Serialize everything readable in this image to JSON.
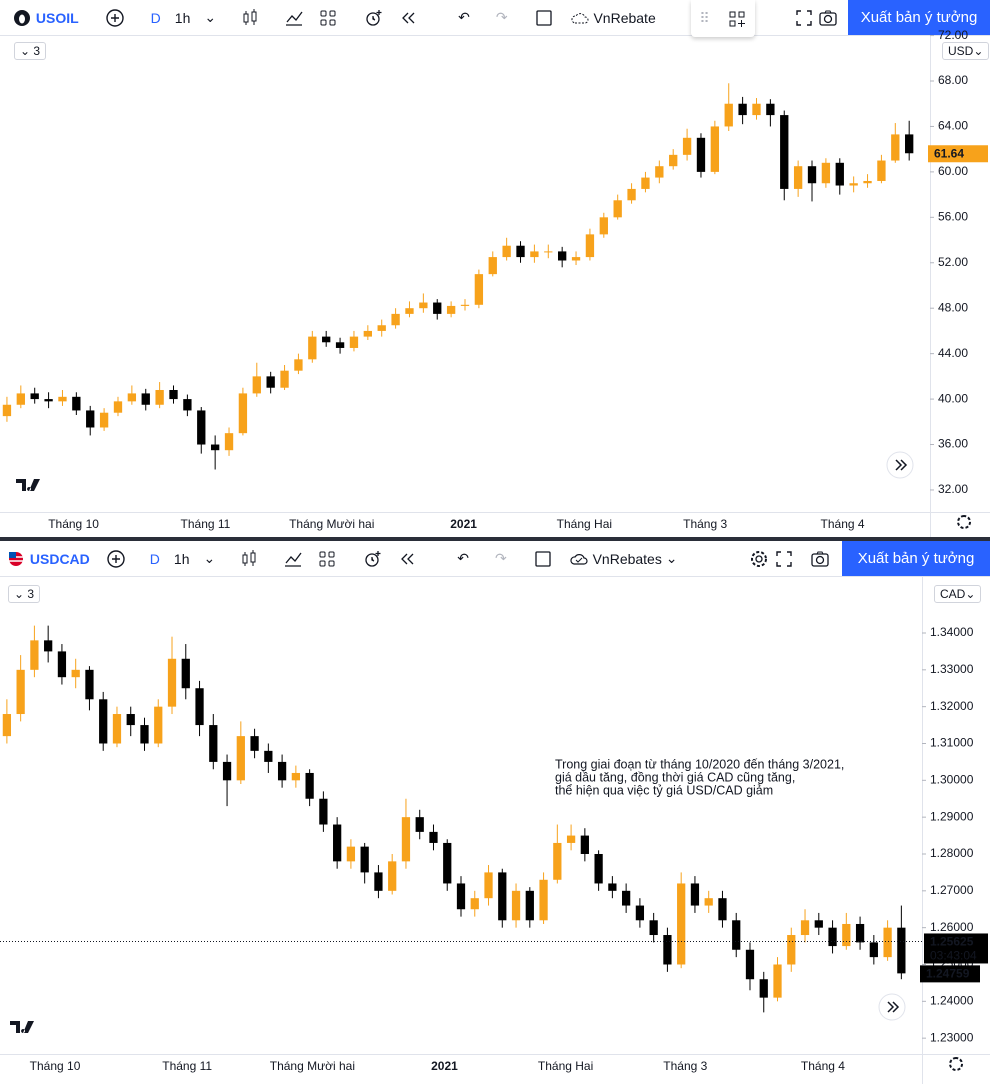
{
  "panels": [
    {
      "toolbar": {
        "symbol": "USOIL",
        "period": "D",
        "interval": "1h",
        "template": "VnRebate",
        "publish": "Xuất bản ý tưởng"
      },
      "scale_unit": "USD",
      "indicator_count": "3"
    },
    {
      "toolbar": {
        "symbol": "USDCAD",
        "period": "D",
        "interval": "1h",
        "template": "VnRebates",
        "publish": "Xuất bản ý tưởng"
      },
      "scale_unit": "CAD",
      "indicator_count": "3"
    }
  ],
  "chart_data": [
    {
      "type": "candlestick",
      "up_color": "#f7a21b",
      "down_color": "#000000",
      "xlim": [
        -0.5,
        66.5
      ],
      "xticks": [
        {
          "value": 4.8,
          "label": "Tháng 10"
        },
        {
          "value": 14.3,
          "label": "Tháng 11"
        },
        {
          "value": 23.4,
          "label": "Tháng Mười hai"
        },
        {
          "value": 32.9,
          "label": "2021"
        },
        {
          "value": 41.6,
          "label": "Tháng Hai"
        },
        {
          "value": 50.3,
          "label": "Tháng 3"
        },
        {
          "value": 60.2,
          "label": "Tháng 4"
        }
      ],
      "ylim": [
        30.06,
        72.05
      ],
      "yticks": [
        {
          "value": 32,
          "label": "32.00"
        },
        {
          "value": 36,
          "label": "36.00"
        },
        {
          "value": 40,
          "label": "40.00"
        },
        {
          "value": 44,
          "label": "44.00"
        },
        {
          "value": 48,
          "label": "48.00"
        },
        {
          "value": 52,
          "label": "52.00"
        },
        {
          "value": 56,
          "label": "56.00"
        },
        {
          "value": 60,
          "label": "60.00"
        },
        {
          "value": 64,
          "label": "64.00"
        },
        {
          "value": 68,
          "label": "68.00"
        },
        {
          "value": 72,
          "label": "72.00"
        }
      ],
      "last_price": 61.64,
      "last_price_color": "#f7a21b",
      "candles": [
        [
          38.5,
          40.2,
          38.0,
          39.5
        ],
        [
          39.5,
          41.2,
          39.2,
          40.5
        ],
        [
          40.5,
          41.0,
          39.6,
          40.0
        ],
        [
          40.0,
          40.6,
          39.2,
          39.8
        ],
        [
          39.8,
          40.8,
          39.4,
          40.2
        ],
        [
          40.2,
          40.6,
          38.6,
          39.0
        ],
        [
          39.0,
          39.4,
          36.8,
          37.5
        ],
        [
          37.5,
          39.2,
          37.2,
          38.8
        ],
        [
          38.8,
          40.2,
          38.5,
          39.8
        ],
        [
          39.8,
          41.2,
          39.5,
          40.5
        ],
        [
          40.5,
          40.9,
          39.0,
          39.5
        ],
        [
          39.5,
          41.5,
          39.2,
          40.8
        ],
        [
          40.8,
          41.2,
          39.6,
          40.0
        ],
        [
          40.0,
          40.4,
          38.5,
          39.0
        ],
        [
          39.0,
          39.3,
          35.2,
          36.0
        ],
        [
          36.0,
          36.8,
          33.8,
          35.5
        ],
        [
          35.5,
          37.5,
          35.0,
          37.0
        ],
        [
          37.0,
          41.0,
          36.8,
          40.5
        ],
        [
          40.5,
          43.2,
          40.2,
          42.0
        ],
        [
          42.0,
          42.4,
          40.5,
          41.0
        ],
        [
          41.0,
          43.0,
          40.8,
          42.5
        ],
        [
          42.5,
          44.0,
          42.2,
          43.5
        ],
        [
          43.5,
          46.0,
          43.2,
          45.5
        ],
        [
          45.5,
          46.0,
          44.6,
          45.0
        ],
        [
          45.0,
          45.4,
          44.0,
          44.5
        ],
        [
          44.5,
          46.0,
          44.2,
          45.5
        ],
        [
          45.5,
          46.5,
          45.2,
          46.0
        ],
        [
          46.0,
          47.0,
          45.5,
          46.5
        ],
        [
          46.5,
          48.0,
          46.2,
          47.5
        ],
        [
          47.5,
          48.6,
          47.2,
          48.0
        ],
        [
          48.0,
          49.3,
          47.6,
          48.5
        ],
        [
          48.5,
          48.8,
          47.0,
          47.5
        ],
        [
          47.5,
          48.6,
          47.2,
          48.2
        ],
        [
          48.2,
          48.8,
          47.8,
          48.3
        ],
        [
          48.3,
          51.4,
          48.0,
          51.0
        ],
        [
          51.0,
          53.0,
          50.8,
          52.5
        ],
        [
          52.5,
          54.2,
          52.2,
          53.5
        ],
        [
          53.5,
          53.9,
          52.0,
          52.5
        ],
        [
          52.5,
          53.6,
          52.0,
          53.0
        ],
        [
          53.0,
          53.6,
          52.4,
          53.0
        ],
        [
          53.0,
          53.4,
          51.6,
          52.2
        ],
        [
          52.2,
          53.0,
          51.8,
          52.5
        ],
        [
          52.5,
          55.0,
          52.2,
          54.5
        ],
        [
          54.5,
          56.4,
          54.2,
          56.0
        ],
        [
          56.0,
          58.0,
          55.8,
          57.5
        ],
        [
          57.5,
          59.0,
          57.2,
          58.5
        ],
        [
          58.5,
          60.0,
          58.2,
          59.5
        ],
        [
          59.5,
          61.0,
          59.0,
          60.5
        ],
        [
          60.5,
          62.0,
          60.2,
          61.5
        ],
        [
          61.5,
          63.8,
          61.0,
          63.0
        ],
        [
          63.0,
          63.4,
          59.5,
          60.0
        ],
        [
          60.0,
          64.5,
          59.8,
          64.0
        ],
        [
          64.0,
          67.8,
          63.6,
          66.0
        ],
        [
          66.0,
          66.6,
          64.2,
          65.0
        ],
        [
          65.0,
          66.5,
          64.6,
          66.0
        ],
        [
          66.0,
          66.4,
          64.0,
          65.0
        ],
        [
          65.0,
          65.4,
          57.5,
          58.5
        ],
        [
          58.5,
          61.0,
          57.8,
          60.5
        ],
        [
          60.5,
          61.0,
          57.4,
          59.0
        ],
        [
          59.0,
          61.2,
          58.6,
          60.8
        ],
        [
          60.8,
          61.2,
          58.0,
          58.8
        ],
        [
          58.8,
          59.6,
          58.2,
          59.0
        ],
        [
          59.0,
          59.8,
          58.6,
          59.2
        ],
        [
          59.2,
          61.5,
          59.0,
          61.0
        ],
        [
          61.0,
          64.3,
          60.8,
          63.3
        ],
        [
          63.3,
          64.5,
          61.0,
          61.64
        ]
      ]
    },
    {
      "type": "candlestick",
      "up_color": "#f7a21b",
      "down_color": "#000000",
      "xlim": [
        -0.5,
        66.5
      ],
      "xticks": [
        {
          "value": 3.5,
          "label": "Tháng 10"
        },
        {
          "value": 13.1,
          "label": "Tháng 11"
        },
        {
          "value": 22.2,
          "label": "Tháng Mười hai"
        },
        {
          "value": 31.8,
          "label": "2021"
        },
        {
          "value": 40.6,
          "label": "Tháng Hai"
        },
        {
          "value": 49.3,
          "label": "Tháng 3"
        },
        {
          "value": 59.3,
          "label": "Tháng 4"
        }
      ],
      "ylim": [
        1.2257,
        1.3552
      ],
      "yticks": [
        {
          "value": 1.23,
          "label": "1.23000"
        },
        {
          "value": 1.24,
          "label": "1.24000"
        },
        {
          "value": 1.25,
          "label": "1.25000"
        },
        {
          "value": 1.26,
          "label": "1.26000"
        },
        {
          "value": 1.27,
          "label": "1.27000"
        },
        {
          "value": 1.28,
          "label": "1.28000"
        },
        {
          "value": 1.29,
          "label": "1.29000"
        },
        {
          "value": 1.3,
          "label": "1.30000"
        },
        {
          "value": 1.31,
          "label": "1.31000"
        },
        {
          "value": 1.32,
          "label": "1.32000"
        },
        {
          "value": 1.33,
          "label": "1.33000"
        },
        {
          "value": 1.34,
          "label": "1.34000"
        }
      ],
      "price_line": 1.25625,
      "countdown": "03:43:04",
      "last_price": 1.24759,
      "last_price_color": "#000000",
      "annotation": [
        "Trong giai đoạn từ tháng 10/2020 đến tháng 3/2021,",
        "giá dầu tăng, đồng thời giá CAD cũng tăng,",
        "thể hiện qua việc tỷ giá USD/CAD giảm"
      ],
      "candles": [
        [
          1.312,
          1.322,
          1.31,
          1.318
        ],
        [
          1.318,
          1.334,
          1.316,
          1.33
        ],
        [
          1.33,
          1.342,
          1.328,
          1.338
        ],
        [
          1.338,
          1.342,
          1.332,
          1.335
        ],
        [
          1.335,
          1.337,
          1.326,
          1.328
        ],
        [
          1.328,
          1.333,
          1.325,
          1.33
        ],
        [
          1.33,
          1.331,
          1.319,
          1.322
        ],
        [
          1.322,
          1.324,
          1.308,
          1.31
        ],
        [
          1.31,
          1.32,
          1.309,
          1.318
        ],
        [
          1.318,
          1.32,
          1.312,
          1.315
        ],
        [
          1.315,
          1.317,
          1.308,
          1.31
        ],
        [
          1.31,
          1.322,
          1.309,
          1.32
        ],
        [
          1.32,
          1.339,
          1.318,
          1.333
        ],
        [
          1.333,
          1.337,
          1.322,
          1.325
        ],
        [
          1.325,
          1.327,
          1.312,
          1.315
        ],
        [
          1.315,
          1.318,
          1.303,
          1.305
        ],
        [
          1.305,
          1.307,
          1.293,
          1.3
        ],
        [
          1.3,
          1.316,
          1.299,
          1.312
        ],
        [
          1.312,
          1.314,
          1.306,
          1.308
        ],
        [
          1.308,
          1.31,
          1.302,
          1.305
        ],
        [
          1.305,
          1.307,
          1.298,
          1.3
        ],
        [
          1.3,
          1.304,
          1.298,
          1.302
        ],
        [
          1.302,
          1.303,
          1.293,
          1.295
        ],
        [
          1.295,
          1.297,
          1.286,
          1.288
        ],
        [
          1.288,
          1.29,
          1.276,
          1.278
        ],
        [
          1.278,
          1.284,
          1.276,
          1.282
        ],
        [
          1.282,
          1.283,
          1.272,
          1.275
        ],
        [
          1.275,
          1.277,
          1.268,
          1.27
        ],
        [
          1.27,
          1.28,
          1.269,
          1.278
        ],
        [
          1.278,
          1.295,
          1.276,
          1.29
        ],
        [
          1.29,
          1.292,
          1.284,
          1.286
        ],
        [
          1.286,
          1.288,
          1.281,
          1.283
        ],
        [
          1.283,
          1.284,
          1.27,
          1.272
        ],
        [
          1.272,
          1.274,
          1.263,
          1.265
        ],
        [
          1.265,
          1.27,
          1.263,
          1.268
        ],
        [
          1.268,
          1.277,
          1.266,
          1.275
        ],
        [
          1.275,
          1.276,
          1.26,
          1.262
        ],
        [
          1.262,
          1.272,
          1.26,
          1.27
        ],
        [
          1.27,
          1.271,
          1.26,
          1.262
        ],
        [
          1.262,
          1.275,
          1.261,
          1.273
        ],
        [
          1.273,
          1.288,
          1.272,
          1.283
        ],
        [
          1.283,
          1.288,
          1.281,
          1.285
        ],
        [
          1.285,
          1.287,
          1.278,
          1.28
        ],
        [
          1.28,
          1.281,
          1.27,
          1.272
        ],
        [
          1.272,
          1.274,
          1.268,
          1.27
        ],
        [
          1.27,
          1.272,
          1.264,
          1.266
        ],
        [
          1.266,
          1.268,
          1.26,
          1.262
        ],
        [
          1.262,
          1.264,
          1.256,
          1.258
        ],
        [
          1.258,
          1.26,
          1.248,
          1.25
        ],
        [
          1.25,
          1.275,
          1.249,
          1.272
        ],
        [
          1.272,
          1.274,
          1.264,
          1.266
        ],
        [
          1.266,
          1.27,
          1.264,
          1.268
        ],
        [
          1.268,
          1.27,
          1.26,
          1.262
        ],
        [
          1.262,
          1.264,
          1.252,
          1.254
        ],
        [
          1.254,
          1.256,
          1.243,
          1.246
        ],
        [
          1.246,
          1.248,
          1.237,
          1.241
        ],
        [
          1.241,
          1.252,
          1.24,
          1.25
        ],
        [
          1.25,
          1.26,
          1.248,
          1.258
        ],
        [
          1.258,
          1.265,
          1.256,
          1.262
        ],
        [
          1.262,
          1.264,
          1.258,
          1.26
        ],
        [
          1.26,
          1.262,
          1.253,
          1.255
        ],
        [
          1.255,
          1.264,
          1.254,
          1.261
        ],
        [
          1.261,
          1.263,
          1.254,
          1.256
        ],
        [
          1.256,
          1.258,
          1.25,
          1.252
        ],
        [
          1.252,
          1.262,
          1.251,
          1.26
        ],
        [
          1.26,
          1.266,
          1.246,
          1.24759
        ]
      ]
    }
  ]
}
